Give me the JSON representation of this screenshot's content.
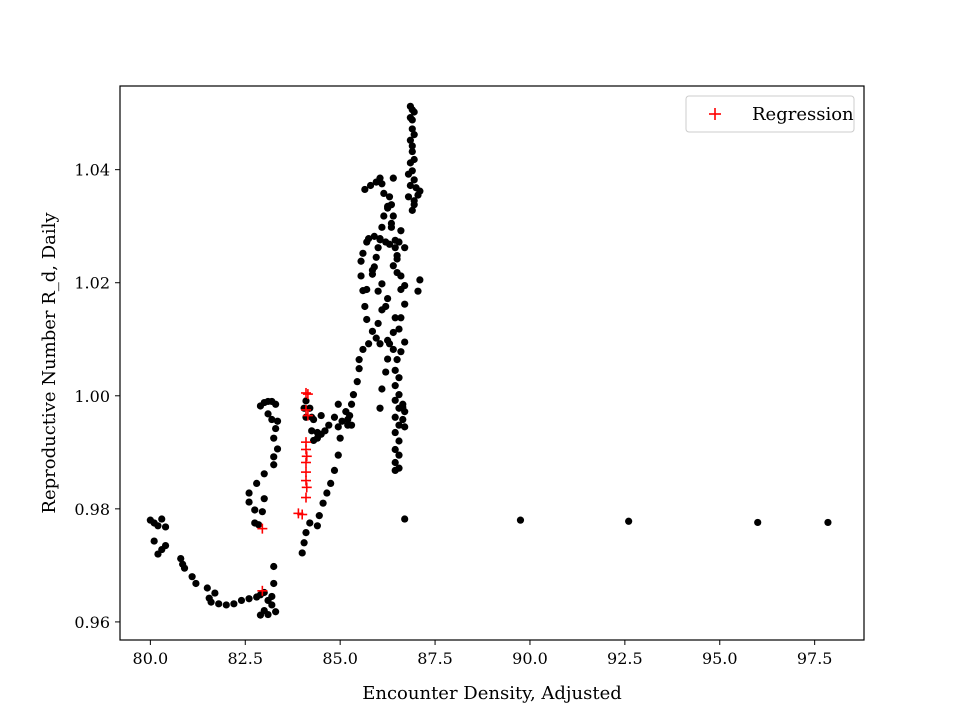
{
  "chart_data": {
    "type": "scatter",
    "title": "",
    "xlabel": "Encounter Density, Adjusted",
    "ylabel": "Reproductive Number R_d, Daily",
    "xlim": [
      79.2,
      98.8
    ],
    "ylim": [
      0.9568,
      1.0548
    ],
    "xticks": [
      80.0,
      82.5,
      85.0,
      87.5,
      90.0,
      92.5,
      95.0,
      97.5
    ],
    "xtick_labels": [
      "80.0",
      "82.5",
      "85.0",
      "87.5",
      "90.0",
      "92.5",
      "95.0",
      "97.5"
    ],
    "yticks": [
      0.96,
      0.98,
      1.0,
      1.02,
      1.04
    ],
    "ytick_labels": [
      "0.96",
      "0.98",
      "1.00",
      "1.02",
      "1.04"
    ],
    "grid": false,
    "legend": {
      "position": "top-right",
      "entries": [
        "Regression"
      ]
    },
    "colors": {
      "points": "#000000",
      "regression": "#ff0000"
    },
    "series": [
      {
        "marker": "circle",
        "color": "#000000",
        "points": [
          [
            80.0,
            0.978
          ],
          [
            80.1,
            0.9775
          ],
          [
            80.3,
            0.9782
          ],
          [
            80.2,
            0.977
          ],
          [
            80.4,
            0.9768
          ],
          [
            80.1,
            0.9743
          ],
          [
            80.3,
            0.9728
          ],
          [
            80.4,
            0.9735
          ],
          [
            80.2,
            0.972
          ],
          [
            80.8,
            0.9712
          ],
          [
            80.9,
            0.9695
          ],
          [
            80.85,
            0.9702
          ],
          [
            81.1,
            0.968
          ],
          [
            81.2,
            0.9668
          ],
          [
            81.5,
            0.966
          ],
          [
            81.7,
            0.9651
          ],
          [
            81.55,
            0.9642
          ],
          [
            81.6,
            0.9635
          ],
          [
            81.8,
            0.9632
          ],
          [
            82.0,
            0.963
          ],
          [
            82.2,
            0.9632
          ],
          [
            82.4,
            0.9638
          ],
          [
            82.6,
            0.9641
          ],
          [
            82.8,
            0.9644
          ],
          [
            82.9,
            0.9648
          ],
          [
            83.0,
            0.9652
          ],
          [
            83.1,
            0.9638
          ],
          [
            83.2,
            0.963
          ],
          [
            83.3,
            0.9618
          ],
          [
            83.0,
            0.962
          ],
          [
            82.9,
            0.9612
          ],
          [
            83.1,
            0.9613
          ],
          [
            83.2,
            0.9645
          ],
          [
            83.25,
            0.9668
          ],
          [
            83.25,
            0.9698
          ],
          [
            82.6,
            0.9812
          ],
          [
            82.6,
            0.9828
          ],
          [
            82.8,
            0.9845
          ],
          [
            82.75,
            0.9798
          ],
          [
            82.75,
            0.9775
          ],
          [
            82.85,
            0.9772
          ],
          [
            82.95,
            0.9795
          ],
          [
            83.0,
            0.9818
          ],
          [
            83.0,
            0.9862
          ],
          [
            83.25,
            0.9878
          ],
          [
            83.25,
            0.9892
          ],
          [
            83.35,
            0.9906
          ],
          [
            83.25,
            0.9925
          ],
          [
            83.3,
            0.9942
          ],
          [
            83.35,
            0.9955
          ],
          [
            83.2,
            0.9958
          ],
          [
            83.1,
            0.9968
          ],
          [
            82.9,
            0.9982
          ],
          [
            83.0,
            0.9988
          ],
          [
            83.1,
            0.999
          ],
          [
            83.2,
            0.999
          ],
          [
            83.3,
            0.9985
          ],
          [
            84.0,
            0.9722
          ],
          [
            84.05,
            0.974
          ],
          [
            84.1,
            0.9758
          ],
          [
            84.2,
            0.9775
          ],
          [
            84.4,
            0.977
          ],
          [
            84.45,
            0.9788
          ],
          [
            84.55,
            0.981
          ],
          [
            84.65,
            0.9828
          ],
          [
            84.75,
            0.9845
          ],
          [
            84.85,
            0.9868
          ],
          [
            84.95,
            0.9895
          ],
          [
            85.0,
            0.9925
          ],
          [
            84.95,
            0.9945
          ],
          [
            85.05,
            0.9955
          ],
          [
            85.2,
            0.9948
          ],
          [
            85.25,
            0.9965
          ],
          [
            84.95,
            0.9985
          ],
          [
            84.85,
            0.9962
          ],
          [
            84.7,
            0.9948
          ],
          [
            84.6,
            0.9938
          ],
          [
            84.5,
            0.9932
          ],
          [
            84.4,
            0.9925
          ],
          [
            84.3,
            0.9921
          ],
          [
            84.25,
            0.9938
          ],
          [
            84.3,
            0.9958
          ],
          [
            84.1,
            0.9962
          ],
          [
            84.05,
            0.9978
          ],
          [
            84.1,
            0.9991
          ],
          [
            84.2,
            0.9978
          ],
          [
            84.25,
            0.9962
          ],
          [
            84.4,
            0.9935
          ],
          [
            84.5,
            0.9965
          ],
          [
            85.15,
            0.9972
          ],
          [
            85.3,
            0.9985
          ],
          [
            85.35,
            1.0002
          ],
          [
            85.45,
            1.0025
          ],
          [
            85.5,
            1.0048
          ],
          [
            85.5,
            1.0064
          ],
          [
            85.6,
            1.0082
          ],
          [
            85.75,
            1.0092
          ],
          [
            85.85,
            1.0114
          ],
          [
            85.7,
            1.0135
          ],
          [
            85.65,
            1.0158
          ],
          [
            85.6,
            1.0186
          ],
          [
            85.55,
            1.0212
          ],
          [
            85.55,
            1.0238
          ],
          [
            85.6,
            1.0252
          ],
          [
            85.7,
            1.0272
          ],
          [
            85.75,
            1.0278
          ],
          [
            85.9,
            1.0282
          ],
          [
            86.05,
            1.0276
          ],
          [
            86.2,
            1.0272
          ],
          [
            86.3,
            1.0268
          ],
          [
            86.45,
            1.0262
          ],
          [
            86.5,
            1.0248
          ],
          [
            86.4,
            1.023
          ],
          [
            86.6,
            1.0212
          ],
          [
            86.7,
            1.0195
          ],
          [
            86.2,
            1.0158
          ],
          [
            86.0,
            1.0128
          ],
          [
            86.1,
            1.0152
          ],
          [
            86.25,
            1.0172
          ],
          [
            85.95,
            1.0102
          ],
          [
            86.05,
            1.0092
          ],
          [
            86.25,
            1.0098
          ],
          [
            86.4,
            1.0082
          ],
          [
            86.55,
            1.0118
          ],
          [
            86.6,
            1.0138
          ],
          [
            86.7,
            1.0162
          ],
          [
            86.7,
            1.0095
          ],
          [
            86.6,
            1.0078
          ],
          [
            86.5,
            1.0064
          ],
          [
            86.45,
            1.0045
          ],
          [
            86.55,
            1.0032
          ],
          [
            86.45,
            1.0018
          ],
          [
            86.55,
            1.0002
          ],
          [
            86.45,
            0.9992
          ],
          [
            86.55,
            0.9978
          ],
          [
            86.45,
            0.9962
          ],
          [
            86.55,
            0.9948
          ],
          [
            86.45,
            0.9935
          ],
          [
            86.55,
            0.992
          ],
          [
            86.45,
            0.9905
          ],
          [
            86.55,
            0.9895
          ],
          [
            86.45,
            0.9882
          ],
          [
            86.55,
            0.9872
          ],
          [
            86.45,
            0.9868
          ],
          [
            86.65,
            0.9985
          ],
          [
            86.7,
            0.9972
          ],
          [
            86.65,
            0.9958
          ],
          [
            86.7,
            0.9945
          ],
          [
            86.65,
            0.998
          ],
          [
            85.2,
            0.9958
          ],
          [
            85.3,
            0.9948
          ],
          [
            86.05,
            0.9978
          ],
          [
            86.1,
            1.0012
          ],
          [
            86.2,
            1.0042
          ],
          [
            86.25,
            1.0065
          ],
          [
            86.3,
            1.0092
          ],
          [
            86.4,
            1.0112
          ],
          [
            86.45,
            1.0138
          ],
          [
            86.6,
            1.0188
          ],
          [
            86.5,
            1.0218
          ],
          [
            86.5,
            1.0242
          ],
          [
            86.45,
            1.0275
          ],
          [
            86.35,
            1.0298
          ],
          [
            86.4,
            1.0318
          ],
          [
            86.35,
            1.0338
          ],
          [
            86.3,
            1.0352
          ],
          [
            86.25,
            1.0335
          ],
          [
            86.15,
            1.0318
          ],
          [
            86.1,
            1.0298
          ],
          [
            86.05,
            1.0278
          ],
          [
            86.0,
            1.0262
          ],
          [
            85.95,
            1.0245
          ],
          [
            85.9,
            1.0228
          ],
          [
            85.85,
            1.0215
          ],
          [
            85.7,
            1.0188
          ],
          [
            86.0,
            1.0185
          ],
          [
            86.1,
            1.0198
          ],
          [
            85.85,
            1.0222
          ],
          [
            86.55,
            1.0272
          ],
          [
            86.6,
            1.0292
          ],
          [
            86.7,
            1.0262
          ],
          [
            86.15,
            1.0358
          ],
          [
            86.1,
            1.0375
          ],
          [
            86.05,
            1.0385
          ],
          [
            85.95,
            1.0378
          ],
          [
            85.8,
            1.0372
          ],
          [
            85.65,
            1.0365
          ],
          [
            86.25,
            1.0332
          ],
          [
            86.35,
            1.0305
          ],
          [
            86.4,
            1.0385
          ],
          [
            86.8,
            1.0352
          ],
          [
            86.85,
            1.0372
          ],
          [
            86.8,
            1.0392
          ],
          [
            86.85,
            1.0412
          ],
          [
            86.9,
            1.0432
          ],
          [
            86.85,
            1.0452
          ],
          [
            86.9,
            1.0472
          ],
          [
            86.85,
            1.0492
          ],
          [
            86.9,
            1.0506
          ],
          [
            86.85,
            1.0512
          ],
          [
            86.95,
            1.0502
          ],
          [
            86.9,
            1.0488
          ],
          [
            86.95,
            1.0462
          ],
          [
            86.9,
            1.0442
          ],
          [
            86.95,
            1.0418
          ],
          [
            86.9,
            1.0398
          ],
          [
            86.95,
            1.0382
          ],
          [
            87.0,
            1.0368
          ],
          [
            87.05,
            1.0355
          ],
          [
            87.1,
            1.0362
          ],
          [
            86.95,
            1.0345
          ],
          [
            86.9,
            1.0328
          ],
          [
            86.95,
            1.0338
          ],
          [
            87.05,
            1.0185
          ],
          [
            87.1,
            1.0205
          ],
          [
            86.7,
            0.9782
          ],
          [
            89.75,
            0.978
          ],
          [
            92.6,
            0.9778
          ],
          [
            96.0,
            0.9776
          ],
          [
            97.85,
            0.9776
          ]
        ]
      },
      {
        "name": "Regression",
        "marker": "plus",
        "color": "#ff0000",
        "points": [
          [
            82.95,
            0.9765
          ],
          [
            82.95,
            0.9655
          ],
          [
            83.9,
            0.9792
          ],
          [
            84.0,
            0.979
          ],
          [
            84.1,
            1.0005
          ],
          [
            84.15,
            1.0003
          ],
          [
            84.1,
            0.9975
          ],
          [
            84.15,
            0.9965
          ],
          [
            84.1,
            0.9918
          ],
          [
            84.1,
            0.9905
          ],
          [
            84.12,
            0.9893
          ],
          [
            84.1,
            0.9882
          ],
          [
            84.1,
            0.9865
          ],
          [
            84.1,
            0.985
          ],
          [
            84.12,
            0.9838
          ],
          [
            84.1,
            0.982
          ]
        ]
      }
    ]
  }
}
